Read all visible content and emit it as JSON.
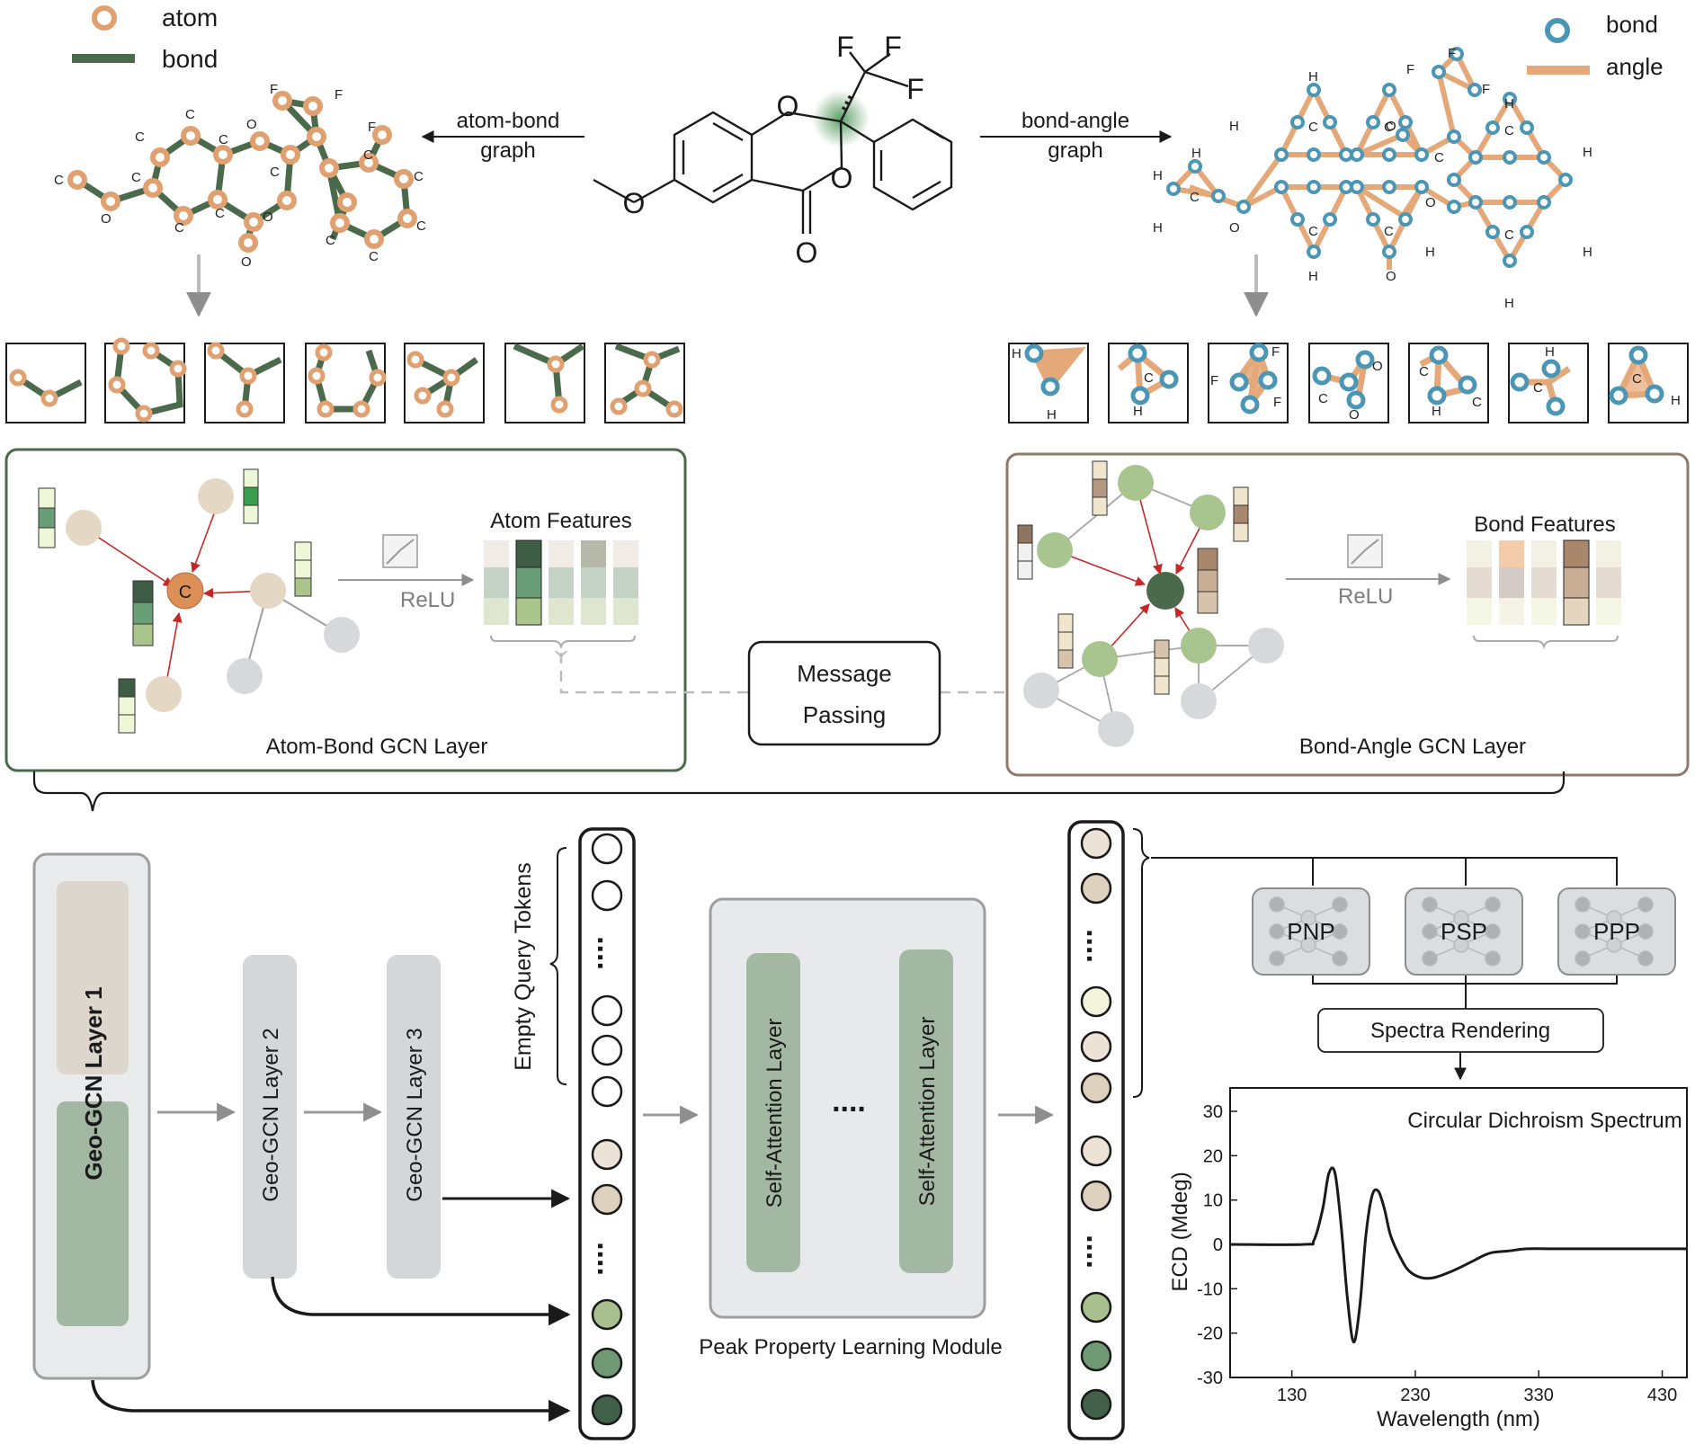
{
  "legend_left": {
    "atom": "atom",
    "bond": "bond"
  },
  "legend_right": {
    "bond": "bond",
    "angle": "angle"
  },
  "arrows": {
    "atom_bond_line1": "atom-bond",
    "atom_bond_line2": "graph",
    "bond_angle_line1": "bond-angle",
    "bond_angle_line2": "graph"
  },
  "molecule_labels": {
    "F": "F",
    "O": "O",
    "C": "C",
    "H": "H"
  },
  "gcn_left": {
    "title": "Atom-Bond GCN Layer",
    "features": "Atom Features",
    "relu": "ReLU",
    "center_atom": "C"
  },
  "gcn_right": {
    "title": "Bond-Angle GCN Layer",
    "features": "Bond Features",
    "relu": "ReLU"
  },
  "message_passing": {
    "line1": "Message",
    "line2": "Passing"
  },
  "geo_layers": [
    "Geo-GCN Layer 1",
    "Geo-GCN Layer 2",
    "Geo-GCN Layer 3"
  ],
  "empty_query_tokens": "Empty Query Tokens",
  "token_dots": "....",
  "peak_module": {
    "label": "Peak Property Learning Module",
    "layer": "Self-Attention Layer",
    "dots": "...."
  },
  "heads": [
    "PNP",
    "PSP",
    "PPP"
  ],
  "spectra_rendering": "Spectra Rendering",
  "chart_data": {
    "type": "line",
    "title": "Circular Dichroism Spectrum",
    "xlabel": "Wavelength (nm)",
    "ylabel": "ECD (Mdeg)",
    "xlim": [
      80,
      450
    ],
    "ylim": [
      -30,
      30
    ],
    "xticks": [
      130,
      230,
      330,
      430
    ],
    "yticks": [
      30,
      20,
      10,
      0,
      -10,
      -20,
      -30
    ],
    "xtick_labels": [
      "130",
      "230",
      "330",
      "430"
    ],
    "ytick_labels": [
      "30",
      "20",
      "10",
      "0",
      "-10",
      "-20",
      "-30"
    ],
    "series": [
      {
        "x": [
          80,
          140,
          148,
          155,
          160,
          165,
          170,
          175,
          180,
          185,
          190,
          195,
          200,
          205,
          210,
          218,
          225,
          235,
          245,
          260,
          275,
          290,
          305,
          320,
          340,
          380,
          450
        ],
        "y": [
          0,
          0,
          1,
          8,
          16,
          16,
          4,
          -12,
          -22,
          -14,
          2,
          11,
          12,
          8,
          2,
          -3,
          -6,
          -7.5,
          -7.5,
          -6,
          -4,
          -2,
          -1.5,
          -1,
          -1,
          -1,
          -1
        ]
      }
    ]
  }
}
